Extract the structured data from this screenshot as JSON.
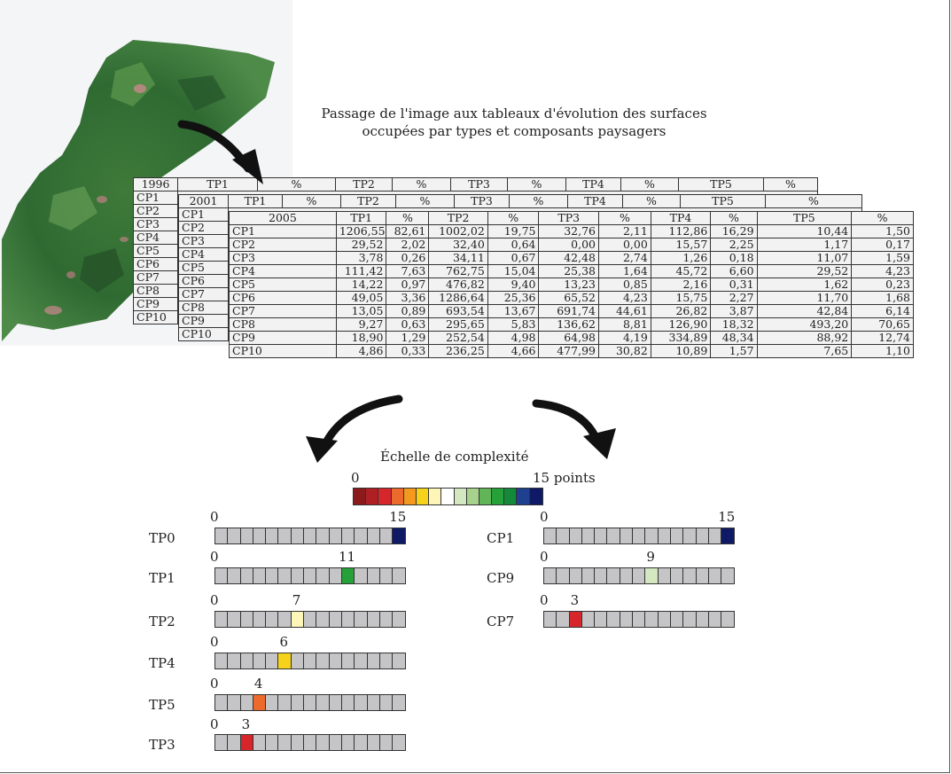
{
  "caption": {
    "line1": "Passage de l'image aux tableaux d'évolution des surfaces",
    "line2": "occupées par types et composants paysagers"
  },
  "tables": {
    "t1996": {
      "year": "1996",
      "header": [
        "TP1",
        "%",
        "TP2",
        "%",
        "TP3",
        "%",
        "TP4",
        "%",
        "TP5",
        "%"
      ],
      "rows": [
        "CP1",
        "CP2",
        "CP3",
        "CP4",
        "CP5",
        "CP6",
        "CP7",
        "CP8",
        "CP9",
        "CP10"
      ]
    },
    "t2001": {
      "year": "2001",
      "header": [
        "TP1",
        "%",
        "TP2",
        "%",
        "TP3",
        "%",
        "TP4",
        "%",
        "TP5",
        "%"
      ],
      "rows": [
        "CP1",
        "CP2",
        "CP3",
        "CP4",
        "CP5",
        "CP6",
        "CP7",
        "CP8",
        "CP9",
        "CP10"
      ]
    },
    "t2005": {
      "year": "2005",
      "header": [
        "TP1",
        "%",
        "TP2",
        "%",
        "TP3",
        "%",
        "TP4",
        "%",
        "TP5",
        "%"
      ],
      "rows": [
        [
          "CP1",
          "1206,55",
          "82,61",
          "1002,02",
          "19,75",
          "32,76",
          "2,11",
          "112,86",
          "16,29",
          "10,44",
          "1,50"
        ],
        [
          "CP2",
          "29,52",
          "2,02",
          "32,40",
          "0,64",
          "0,00",
          "0,00",
          "15,57",
          "2,25",
          "1,17",
          "0,17"
        ],
        [
          "CP3",
          "3,78",
          "0,26",
          "34,11",
          "0,67",
          "42,48",
          "2,74",
          "1,26",
          "0,18",
          "11,07",
          "1,59"
        ],
        [
          "CP4",
          "111,42",
          "7,63",
          "762,75",
          "15,04",
          "25,38",
          "1,64",
          "45,72",
          "6,60",
          "29,52",
          "4,23"
        ],
        [
          "CP5",
          "14,22",
          "0,97",
          "476,82",
          "9,40",
          "13,23",
          "0,85",
          "2,16",
          "0,31",
          "1,62",
          "0,23"
        ],
        [
          "CP6",
          "49,05",
          "3,36",
          "1286,64",
          "25,36",
          "65,52",
          "4,23",
          "15,75",
          "2,27",
          "11,70",
          "1,68"
        ],
        [
          "CP7",
          "13,05",
          "0,89",
          "693,54",
          "13,67",
          "691,74",
          "44,61",
          "26,82",
          "3,87",
          "42,84",
          "6,14"
        ],
        [
          "CP8",
          "9,27",
          "0,63",
          "295,65",
          "5,83",
          "136,62",
          "8,81",
          "126,90",
          "18,32",
          "493,20",
          "70,65"
        ],
        [
          "CP9",
          "18,90",
          "1,29",
          "252,54",
          "4,98",
          "64,98",
          "4,19",
          "334,89",
          "48,34",
          "88,92",
          "12,74"
        ],
        [
          "CP10",
          "4,86",
          "0,33",
          "236,25",
          "4,66",
          "477,99",
          "30,82",
          "10,89",
          "1,57",
          "7,65",
          "1,10"
        ]
      ]
    }
  },
  "scale": {
    "title": "Échelle de complexité",
    "min_label": "0",
    "max_label": "15 points",
    "colors": [
      "#8b1a1a",
      "#b01f24",
      "#d7262b",
      "#ec6a2c",
      "#f39a1e",
      "#f7d21a",
      "#fdf6b8",
      "#ffffff",
      "#d3e8c0",
      "#a6d28c",
      "#62b556",
      "#26a139",
      "#138a3a",
      "#1f3f8f",
      "#0f1a66"
    ]
  },
  "ratings": [
    {
      "label": "TP0",
      "zero": "0",
      "value": 15,
      "value_label": "15",
      "color": "#0f1a66"
    },
    {
      "label": "TP1",
      "zero": "0",
      "value": 11,
      "value_label": "11",
      "color": "#26a139"
    },
    {
      "label": "TP2",
      "zero": "0",
      "value": 7,
      "value_label": "7",
      "color": "#fdf6b8"
    },
    {
      "label": "TP4",
      "zero": "0",
      "value": 6,
      "value_label": "6",
      "color": "#f7d21a"
    },
    {
      "label": "TP5",
      "zero": "0",
      "value": 4,
      "value_label": "4",
      "color": "#ec6a2c"
    },
    {
      "label": "TP3",
      "zero": "0",
      "value": 3,
      "value_label": "3",
      "color": "#d7262b"
    },
    {
      "label": "CP1",
      "zero": "0",
      "value": 15,
      "value_label": "15",
      "color": "#0f1a66"
    },
    {
      "label": "CP9",
      "zero": "0",
      "value": 9,
      "value_label": "9",
      "color": "#d3e8c0"
    },
    {
      "label": "CP7",
      "zero": "0",
      "value": 3,
      "value_label": "3",
      "color": "#d7262b"
    }
  ]
}
